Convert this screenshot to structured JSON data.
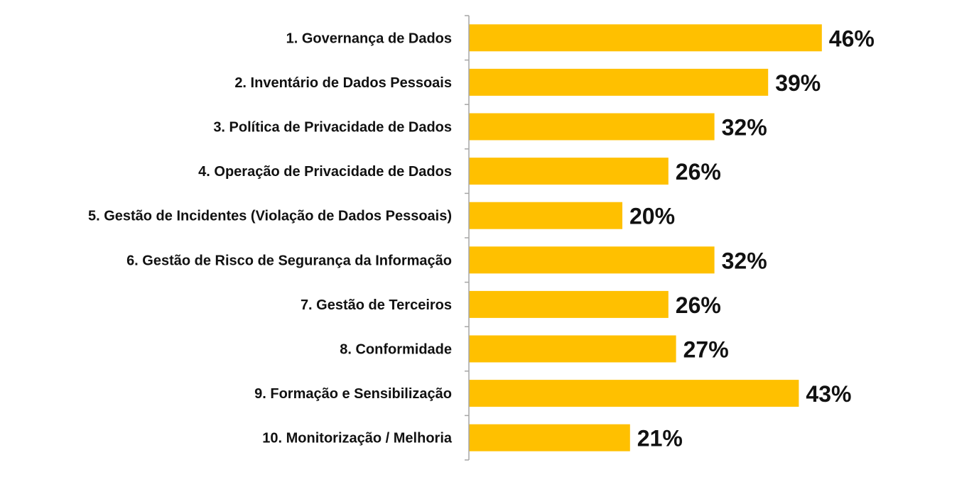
{
  "chart_data": {
    "type": "bar",
    "orientation": "horizontal",
    "title": "",
    "xlabel": "",
    "ylabel": "",
    "grid": false,
    "legend": "none",
    "xlim": [
      0,
      50
    ],
    "bar_color": "#FFC000",
    "categories": [
      "1. Governança de Dados",
      "2. Inventário de Dados Pessoais",
      "3. Política de Privacidade de Dados",
      "4. Operação de Privacidade de Dados",
      "5. Gestão de Incidentes (Violação de Dados Pessoais)",
      "6. Gestão de Risco de Segurança da Informação",
      "7. Gestão de Terceiros",
      "8. Conformidade",
      "9. Formação e Sensibilização",
      "10. Monitorização / Melhoria"
    ],
    "values": [
      46,
      39,
      32,
      26,
      20,
      32,
      26,
      27,
      43,
      21
    ],
    "data_labels": [
      "46%",
      "39%",
      "32%",
      "26%",
      "20%",
      "32%",
      "26%",
      "27%",
      "43%",
      "21%"
    ]
  }
}
